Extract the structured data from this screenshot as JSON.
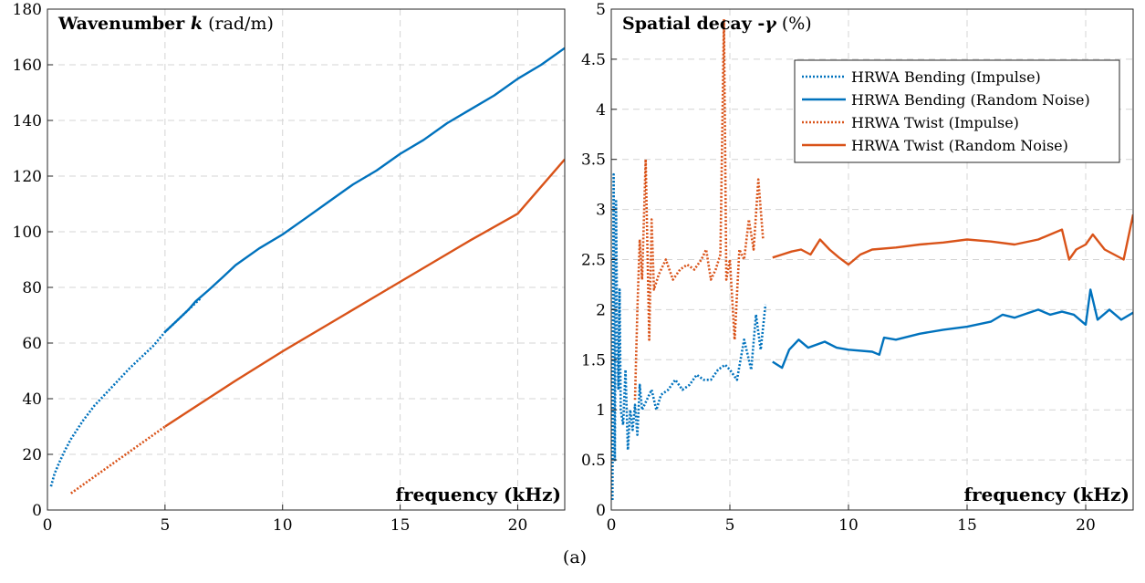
{
  "caption": "(a)",
  "colors": {
    "bending": "#0072BD",
    "twist": "#D95319",
    "grid": "#d4d4d4",
    "axis": "#262626"
  },
  "chart_data": [
    {
      "type": "line",
      "title_bold": "Wavenumber ",
      "title_symbol": "k",
      "title_rest": " (rad/m)",
      "xlabel": "frequency (kHz)",
      "ylabel": "",
      "xlim": [
        0,
        22
      ],
      "ylim": [
        0,
        180
      ],
      "x_ticks": [
        0,
        5,
        10,
        15,
        20
      ],
      "y_ticks": [
        0,
        20,
        40,
        60,
        80,
        100,
        120,
        140,
        160,
        180
      ],
      "grid": true,
      "series": [
        {
          "key": "bend_imp",
          "color_key": "bending",
          "style": "dotted",
          "x": [
            0.15,
            0.3,
            0.5,
            0.75,
            1.0,
            1.5,
            2.0,
            2.5,
            3.0,
            3.5,
            4.0,
            4.5,
            5.0,
            5.5,
            6.0,
            6.5
          ],
          "y": [
            8.5,
            13,
            17,
            21.5,
            25.5,
            32,
            37.5,
            42,
            46.5,
            51,
            55,
            59,
            64,
            68,
            72,
            76
          ]
        },
        {
          "key": "bend_rn",
          "color_key": "bending",
          "style": "solid",
          "x": [
            5.0,
            5.5,
            6.0,
            6.3,
            6.85,
            7.5,
            8.0,
            9.0,
            10.0,
            11.0,
            12.0,
            13.0,
            14.0,
            15.0,
            16.0,
            17.0,
            18.0,
            19.0,
            20.0,
            21.0,
            22.0
          ],
          "y": [
            64,
            68,
            72,
            75,
            79,
            84,
            88,
            94,
            99,
            105,
            111,
            117,
            122,
            128,
            133,
            139,
            144,
            149,
            155,
            160,
            166
          ]
        },
        {
          "key": "twist_imp",
          "color_key": "twist",
          "style": "dotted",
          "x": [
            1.0,
            2.0,
            3.0,
            4.0,
            5.0
          ],
          "y": [
            6,
            12,
            18,
            24,
            30
          ]
        },
        {
          "key": "twist_rn",
          "color_key": "twist",
          "style": "solid",
          "x": [
            5.0,
            6.0,
            8.0,
            10.0,
            12.0,
            14.0,
            16.0,
            18.0,
            20.0,
            22.0
          ],
          "y": [
            30,
            35.5,
            46.5,
            57,
            67,
            77,
            87,
            97,
            106.5,
            126
          ]
        }
      ]
    },
    {
      "type": "line",
      "title_bold": "Spatial decay -",
      "title_symbol": "γ",
      "title_rest": " (%)",
      "xlabel": "frequency (kHz)",
      "ylabel": "",
      "xlim": [
        0,
        22
      ],
      "ylim": [
        0,
        5
      ],
      "x_ticks": [
        0,
        5,
        10,
        15,
        20
      ],
      "y_ticks": [
        0,
        0.5,
        1,
        1.5,
        2,
        2.5,
        3,
        3.5,
        4,
        4.5,
        5
      ],
      "y_tick_labels": [
        "0",
        "0.5",
        "1",
        "1.5",
        "2",
        "2.5",
        "3",
        "3.5",
        "4",
        "4.5",
        "5"
      ],
      "grid": true,
      "legend_position": "top-right",
      "legend": [
        {
          "label": "HRWA Bending (Impulse)",
          "color_key": "bending",
          "style": "dotted"
        },
        {
          "label": "HRWA Bending (Random Noise)",
          "color_key": "bending",
          "style": "solid"
        },
        {
          "label": "HRWA Twist (Impulse)",
          "color_key": "twist",
          "style": "dotted"
        },
        {
          "label": "HRWA Twist (Random Noise)",
          "color_key": "twist",
          "style": "solid"
        }
      ],
      "series": [
        {
          "key": "bend_imp",
          "color_key": "bending",
          "style": "dotted",
          "x": [
            0.05,
            0.1,
            0.15,
            0.2,
            0.25,
            0.3,
            0.35,
            0.4,
            0.5,
            0.6,
            0.7,
            0.8,
            0.9,
            1.0,
            1.1,
            1.2,
            1.3,
            1.5,
            1.7,
            1.9,
            2.1,
            2.4,
            2.7,
            3.0,
            3.3,
            3.6,
            3.9,
            4.2,
            4.5,
            4.8,
            5.0,
            5.3,
            5.6,
            5.9,
            6.1,
            6.3,
            6.5
          ],
          "y": [
            0.1,
            3.35,
            0.5,
            3.1,
            1.8,
            1.2,
            2.2,
            1.0,
            0.85,
            1.4,
            0.6,
            1.0,
            0.8,
            1.05,
            0.75,
            1.25,
            1.0,
            1.1,
            1.2,
            1.0,
            1.15,
            1.2,
            1.3,
            1.2,
            1.25,
            1.35,
            1.3,
            1.3,
            1.4,
            1.45,
            1.4,
            1.3,
            1.7,
            1.4,
            1.95,
            1.6,
            2.05
          ]
        },
        {
          "key": "bend_rn",
          "color_key": "bending",
          "style": "solid",
          "x": [
            6.8,
            7.2,
            7.5,
            7.9,
            8.3,
            9.0,
            9.5,
            10.0,
            11.0,
            11.3,
            11.5,
            12.0,
            13.0,
            14.0,
            15.0,
            16.0,
            16.5,
            17.0,
            17.5,
            18.0,
            18.5,
            19.0,
            19.5,
            20.0,
            20.2,
            20.5,
            21.0,
            21.5,
            22.0
          ],
          "y": [
            1.48,
            1.42,
            1.6,
            1.7,
            1.62,
            1.68,
            1.62,
            1.6,
            1.58,
            1.55,
            1.72,
            1.7,
            1.76,
            1.8,
            1.83,
            1.88,
            1.95,
            1.92,
            1.96,
            2.0,
            1.95,
            1.98,
            1.95,
            1.85,
            2.2,
            1.9,
            2.0,
            1.9,
            1.97
          ]
        },
        {
          "key": "twist_imp",
          "color_key": "twist",
          "style": "dotted",
          "x": [
            1.0,
            1.1,
            1.2,
            1.3,
            1.45,
            1.6,
            1.7,
            1.8,
            2.0,
            2.3,
            2.6,
            2.9,
            3.2,
            3.5,
            3.8,
            4.0,
            4.2,
            4.4,
            4.6,
            4.75,
            4.85,
            5.0,
            5.2,
            5.4,
            5.6,
            5.8,
            6.0,
            6.2,
            6.4
          ],
          "y": [
            1.1,
            2.0,
            2.7,
            2.3,
            3.5,
            1.7,
            2.9,
            2.2,
            2.35,
            2.5,
            2.3,
            2.4,
            2.45,
            2.4,
            2.5,
            2.6,
            2.3,
            2.4,
            2.55,
            4.9,
            2.3,
            2.5,
            1.7,
            2.6,
            2.5,
            2.9,
            2.6,
            3.3,
            2.7
          ]
        },
        {
          "key": "twist_rn",
          "color_key": "twist",
          "style": "solid",
          "x": [
            6.8,
            7.2,
            7.6,
            8.0,
            8.4,
            8.8,
            9.2,
            9.6,
            10.0,
            10.5,
            11.0,
            12.0,
            13.0,
            14.0,
            15.0,
            16.0,
            17.0,
            18.0,
            19.0,
            19.3,
            19.6,
            20.0,
            20.3,
            20.8,
            21.2,
            21.6,
            22.0
          ],
          "y": [
            2.52,
            2.55,
            2.58,
            2.6,
            2.55,
            2.7,
            2.6,
            2.52,
            2.45,
            2.55,
            2.6,
            2.62,
            2.65,
            2.67,
            2.7,
            2.68,
            2.65,
            2.7,
            2.8,
            2.5,
            2.6,
            2.65,
            2.75,
            2.6,
            2.55,
            2.5,
            2.95
          ]
        }
      ]
    }
  ]
}
